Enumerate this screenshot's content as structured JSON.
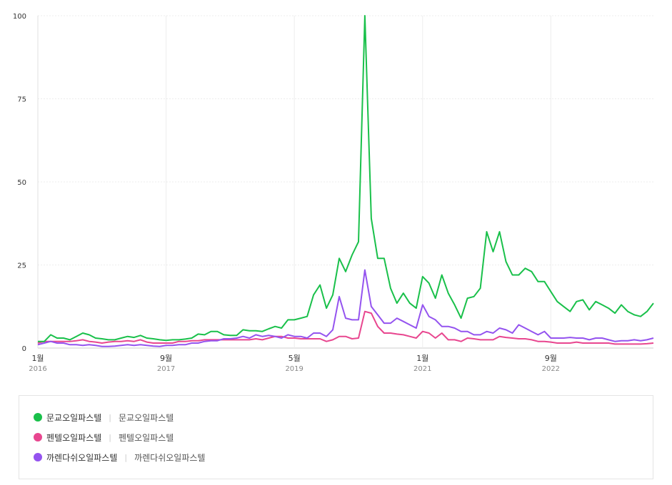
{
  "chart_data": {
    "type": "line",
    "ylim": [
      0,
      100
    ],
    "y_ticks": [
      "0",
      "25",
      "50",
      "75",
      "100"
    ],
    "x_tick_labels": [
      {
        "main": "1월",
        "sub": "2016",
        "idx": 0
      },
      {
        "main": "9월",
        "sub": "2017",
        "idx": 20
      },
      {
        "main": "5월",
        "sub": "2019",
        "idx": 40
      },
      {
        "main": "1월",
        "sub": "2021",
        "idx": 60
      },
      {
        "main": "9월",
        "sub": "2022",
        "idx": 80
      }
    ],
    "grid": true,
    "series": [
      {
        "name": "문교오일파스텔",
        "color": "#19c04a",
        "values": [
          2,
          2,
          4,
          3,
          3,
          2.5,
          3.5,
          4.5,
          4,
          3,
          2.8,
          2.5,
          2.5,
          3,
          3.5,
          3.2,
          3.8,
          3,
          2.8,
          2.5,
          2.3,
          2.5,
          2.5,
          2.7,
          3,
          4.2,
          4,
          5,
          5,
          4,
          3.8,
          3.8,
          5.5,
          5.2,
          5.2,
          5,
          5.8,
          6.5,
          6,
          8.5,
          8.5,
          9,
          9.5,
          16,
          19,
          12,
          16,
          27,
          23,
          28,
          32,
          100,
          39,
          27,
          27,
          18,
          13.5,
          16.5,
          13.5,
          12,
          21.5,
          19.5,
          15,
          22,
          16.5,
          13,
          9,
          15,
          15.5,
          18,
          35,
          29,
          35,
          26,
          22,
          22,
          24,
          23,
          20,
          20,
          17,
          14,
          12.5,
          11,
          14,
          14.5,
          11.5,
          14,
          13,
          12,
          10.5,
          13,
          11,
          10,
          9.5,
          11,
          13.5
        ]
      },
      {
        "name": "펜텔오일파스텔",
        "color": "#e8468f",
        "values": [
          1.5,
          2,
          2,
          2,
          2,
          2,
          2.2,
          2.5,
          2,
          1.8,
          1.5,
          1.8,
          2,
          2,
          2.2,
          2,
          2.5,
          1.8,
          1.5,
          1.5,
          1.5,
          1.5,
          2,
          2,
          2.2,
          2.2,
          2.5,
          2.5,
          2.5,
          2.5,
          2.5,
          2.5,
          2.5,
          2.5,
          2.8,
          2.5,
          3,
          3.5,
          3.5,
          3,
          3,
          2.8,
          2.8,
          2.8,
          2.8,
          2,
          2.5,
          3.5,
          3.5,
          2.8,
          3,
          11,
          10.5,
          6.5,
          4.5,
          4.5,
          4.2,
          4,
          3.5,
          3,
          5,
          4.5,
          3,
          4.5,
          2.5,
          2.5,
          2,
          3,
          2.8,
          2.5,
          2.5,
          2.5,
          3.5,
          3.2,
          3,
          2.8,
          2.8,
          2.5,
          2,
          2,
          1.8,
          1.5,
          1.5,
          1.5,
          1.8,
          1.5,
          1.5,
          1.5,
          1.5,
          1.5,
          1.2,
          1.2,
          1.2,
          1.2,
          1.2,
          1.3,
          1.5
        ]
      },
      {
        "name": "까렌다쉬오일파스텔",
        "color": "#9453ef",
        "values": [
          1,
          1.5,
          2,
          1.5,
          1.5,
          1,
          1,
          0.8,
          1,
          0.8,
          0.5,
          0.5,
          0.6,
          0.8,
          1,
          0.8,
          1,
          0.8,
          0.6,
          0.5,
          0.8,
          0.8,
          1,
          1,
          1.5,
          1.5,
          2,
          2.2,
          2.2,
          2.8,
          2.8,
          3,
          3.5,
          3,
          4,
          3.5,
          3.8,
          3.5,
          3,
          4,
          3.5,
          3.5,
          3,
          4.5,
          4.5,
          3.5,
          5.5,
          15.5,
          9,
          8.5,
          8.5,
          23.5,
          12.5,
          10,
          7.5,
          7.5,
          9,
          8,
          7,
          6,
          13,
          9.5,
          8.5,
          6.5,
          6.5,
          6,
          5,
          5,
          4,
          4,
          5,
          4.5,
          6,
          5.5,
          4.5,
          7,
          6,
          5,
          4,
          5,
          3,
          3,
          3,
          3.2,
          3,
          3,
          2.5,
          3,
          3,
          2.5,
          2,
          2.2,
          2.2,
          2.5,
          2.2,
          2.5,
          3
        ]
      }
    ]
  },
  "legend": {
    "items": [
      {
        "label": "문교오일파스텔",
        "sub": "문교오일파스텔",
        "color": "#19c04a"
      },
      {
        "label": "펜텔오일파스텔",
        "sub": "펜텔오일파스텔",
        "color": "#e8468f"
      },
      {
        "label": "까렌다쉬오일파스텔",
        "sub": "까렌다쉬오일파스텔",
        "color": "#9453ef"
      }
    ]
  }
}
